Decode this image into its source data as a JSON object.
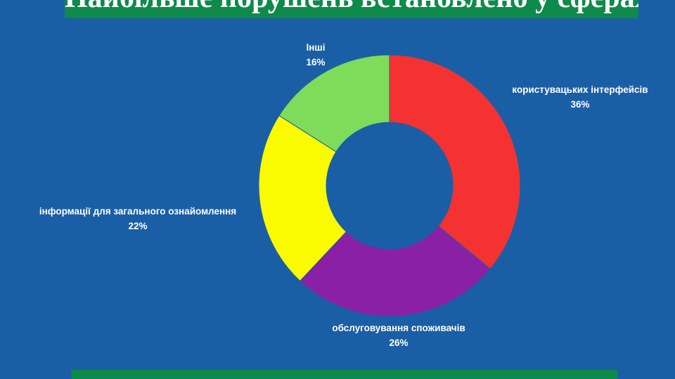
{
  "header": {
    "title": "Найбільше порушень встановлено у сферах:"
  },
  "chart_data": {
    "type": "pie",
    "donut": true,
    "title": "",
    "slices": [
      {
        "label": "користувацьких інтерфейсів",
        "value": 36,
        "value_label": "36%",
        "color": "#f43232"
      },
      {
        "label": "обслуговування споживачів",
        "value": 26,
        "value_label": "26%",
        "color": "#8a20a6"
      },
      {
        "label": "інформації для загального ознайомлення",
        "value": 22,
        "value_label": "22%",
        "color": "#fafa00"
      },
      {
        "label": "Інші",
        "value": 16,
        "value_label": "16%",
        "color": "#7edc5a"
      }
    ]
  }
}
